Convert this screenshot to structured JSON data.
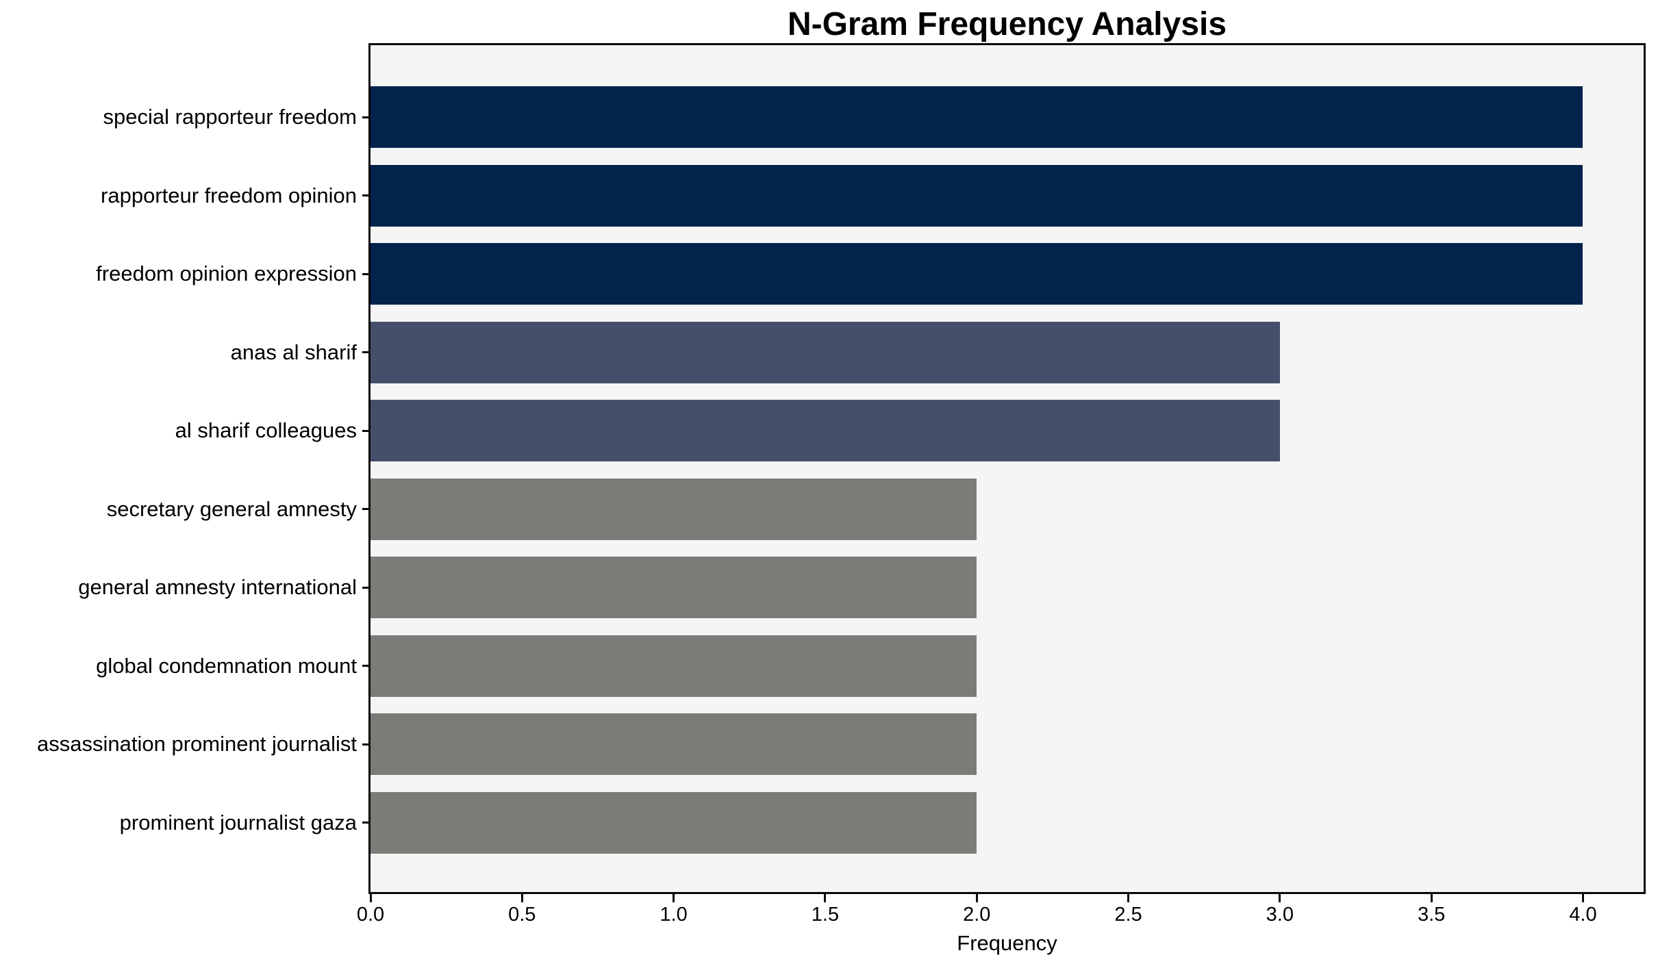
{
  "chart": {
    "title": "N-Gram Frequency Analysis",
    "xlabel": "Frequency"
  },
  "chart_data": {
    "type": "bar",
    "orientation": "horizontal",
    "title": "N-Gram Frequency Analysis",
    "xlabel": "Frequency",
    "ylabel": "",
    "categories": [
      "special rapporteur freedom",
      "rapporteur freedom opinion",
      "freedom opinion expression",
      "anas al sharif",
      "al sharif colleagues",
      "secretary general amnesty",
      "general amnesty international",
      "global condemnation mount",
      "assassination prominent journalist",
      "prominent journalist gaza"
    ],
    "values": [
      4,
      4,
      4,
      3,
      3,
      2,
      2,
      2,
      2,
      2
    ],
    "bar_colors": [
      "#03234d",
      "#03234d",
      "#03234d",
      "#454f6b",
      "#454f6b",
      "#7b7b77",
      "#7b7b77",
      "#7b7b77",
      "#7b7b77",
      "#7b7b77"
    ],
    "xlim": [
      0,
      4.2
    ],
    "xticks": [
      0,
      0.5,
      1,
      1.5,
      2,
      2.5,
      3,
      3.5,
      4
    ],
    "xtick_labels": [
      "0.0",
      "0.5",
      "1.0",
      "1.5",
      "2.0",
      "2.5",
      "3.0",
      "3.5",
      "4.0"
    ],
    "grid": false,
    "legend": "none",
    "plot_background": "#f5f5f6",
    "figure_background": "#ffffff",
    "spine_color": "#0a0a0a",
    "text_color": "#000000"
  }
}
